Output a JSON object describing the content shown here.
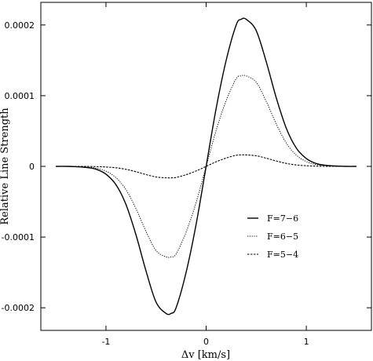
{
  "chart_data": {
    "type": "line",
    "xlabel": "Δv [km/s]",
    "ylabel": "Relative Line Strength",
    "xlim": [
      -1.65,
      1.65
    ],
    "ylim": [
      -0.000232,
      0.000232
    ],
    "xticks": [
      -1,
      0,
      1
    ],
    "xtick_labels": [
      "-1",
      "0",
      "1"
    ],
    "yticks": [
      0.0002,
      0.0001,
      0,
      -0.0001,
      -0.0002
    ],
    "ytick_labels": [
      "0.0002",
      "0.0001",
      "0",
      "-0.0001",
      "-0.0002"
    ],
    "grid": false,
    "legend_position": "lower-right",
    "x": [
      -1.5,
      -1.4,
      -1.3,
      -1.2,
      -1.1,
      -1.0,
      -0.9,
      -0.8,
      -0.7,
      -0.6,
      -0.5,
      -0.4,
      -0.35,
      -0.3,
      -0.2,
      -0.1,
      0.0,
      0.1,
      0.2,
      0.3,
      0.35,
      0.4,
      0.5,
      0.6,
      0.7,
      0.8,
      0.9,
      1.0,
      1.1,
      1.2,
      1.3,
      1.4,
      1.5
    ],
    "series": [
      {
        "name": "F=7−6",
        "style": "solid",
        "values": [
          0.0,
          0.0,
          -5e-07,
          -1.5e-06,
          -4e-06,
          -1.1e-05,
          -2.6e-05,
          -5.4e-05,
          -9.7e-05,
          -0.000148,
          -0.000192,
          -0.000208,
          -0.000208,
          -0.0002,
          -0.00015,
          -8.2e-05,
          0.0,
          8.2e-05,
          0.00015,
          0.0002,
          0.000208,
          0.000208,
          0.000192,
          0.000148,
          9.7e-05,
          5.4e-05,
          2.6e-05,
          1.1e-05,
          4e-06,
          1.5e-06,
          5e-07,
          0.0,
          0.0
        ]
      },
      {
        "name": "F=6−5",
        "style": "dotted",
        "values": [
          0.0,
          0.0,
          -3e-07,
          -1e-06,
          -2.5e-06,
          -6.8e-06,
          -1.6e-05,
          -3.3e-05,
          -6e-05,
          -9.2e-05,
          -0.000119,
          -0.000128,
          -0.000128,
          -0.000124,
          -9.3e-05,
          -5.1e-05,
          0.0,
          5.1e-05,
          9.3e-05,
          0.000124,
          0.000128,
          0.000128,
          0.000119,
          9.2e-05,
          6e-05,
          3.3e-05,
          1.6e-05,
          6.8e-06,
          2.5e-06,
          1e-06,
          3e-07,
          0.0,
          0.0
        ]
      },
      {
        "name": "F=5−4",
        "style": "dashed",
        "values": [
          0.0,
          0.0,
          0.0,
          -1e-07,
          -3e-07,
          -9e-07,
          -2e-06,
          -4.2e-06,
          -7.6e-06,
          -1.16e-05,
          -1.5e-05,
          -1.62e-05,
          -1.62e-05,
          -1.57e-05,
          -1.18e-05,
          -6.5e-06,
          0.0,
          6.5e-06,
          1.18e-05,
          1.57e-05,
          1.62e-05,
          1.62e-05,
          1.5e-05,
          1.16e-05,
          7.6e-06,
          4.2e-06,
          2e-06,
          9e-07,
          3e-07,
          1e-07,
          0.0,
          0.0,
          0.0
        ]
      }
    ]
  }
}
